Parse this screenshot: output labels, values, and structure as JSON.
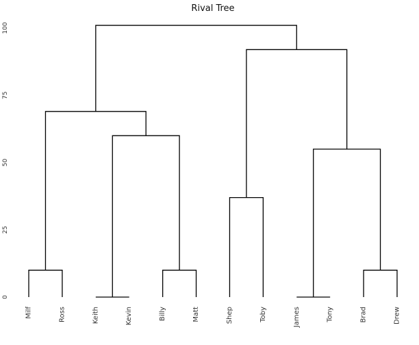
{
  "chart_data": {
    "type": "dendrogram",
    "title": "Rival Tree",
    "xlabel": "",
    "ylabel": "",
    "ylim": [
      0,
      100
    ],
    "y_ticks": [
      0,
      25,
      50,
      75,
      100
    ],
    "leaves": [
      "Milf",
      "Ross",
      "Keith",
      "Kevin",
      "Billy",
      "Matt",
      "Shep",
      "Toby",
      "James",
      "Tony",
      "Brad",
      "Drew"
    ],
    "merges": [
      {
        "left": "Milf",
        "right": "Ross",
        "height": 10
      },
      {
        "left": "Keith",
        "right": "Kevin",
        "height": 0
      },
      {
        "left": "Billy",
        "right": "Matt",
        "height": 10
      },
      {
        "left": "Shep",
        "right": "Toby",
        "height": 37
      },
      {
        "left": "James",
        "right": "Tony",
        "height": 0
      },
      {
        "left": "Brad",
        "right": "Drew",
        "height": 10
      },
      {
        "left": "Keith+Kevin",
        "right": "Billy+Matt",
        "height": 60
      },
      {
        "left": "Milf+Ross",
        "right": "Keith+Kevin+Billy+Matt",
        "height": 69
      },
      {
        "left": "James+Tony",
        "right": "Brad+Drew",
        "height": 55
      },
      {
        "left": "Shep+Toby",
        "right": "James+Tony+Brad+Drew",
        "height": 92
      },
      {
        "left": "Milf..Matt",
        "right": "Shep..Drew",
        "height": 101
      }
    ],
    "grid": false,
    "legend": "none"
  }
}
